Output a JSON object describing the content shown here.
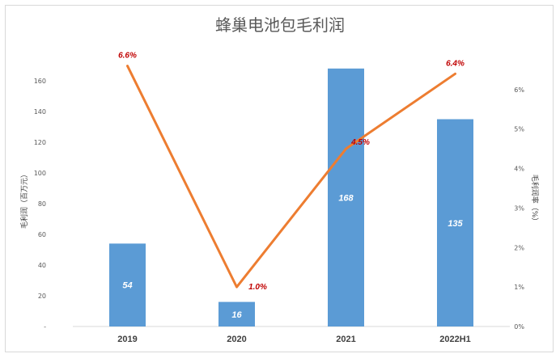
{
  "chart_data": {
    "type": "bar",
    "title": "蜂巢电池包毛利润",
    "categories": [
      "2019",
      "2020",
      "2021",
      "2022H1"
    ],
    "series": [
      {
        "values": [
          54,
          16,
          168,
          135
        ],
        "labels": [
          "54",
          "16",
          "168",
          "135"
        ],
        "color": "#5b9bd5",
        "axis": "left",
        "type": "bar"
      },
      {
        "values": [
          6.6,
          1.0,
          4.5,
          6.4
        ],
        "labels": [
          "6.6%",
          "1.0%",
          "4.5%",
          "6.4%"
        ],
        "color": "#ed7d31",
        "axis": "right",
        "type": "line"
      }
    ],
    "ylabel": "毛利润（百万元）",
    "y2label": "毛利润率（%）",
    "ylim": [
      0,
      180
    ],
    "y2lim": [
      0,
      7
    ],
    "yticks": [
      "-",
      "20",
      "40",
      "60",
      "80",
      "100",
      "120",
      "140",
      "160"
    ],
    "y2ticks": [
      "0%",
      "1%",
      "2%",
      "3%",
      "4%",
      "5%",
      "6%"
    ],
    "label_color": "#c00000",
    "grid": false,
    "legend": "none"
  }
}
